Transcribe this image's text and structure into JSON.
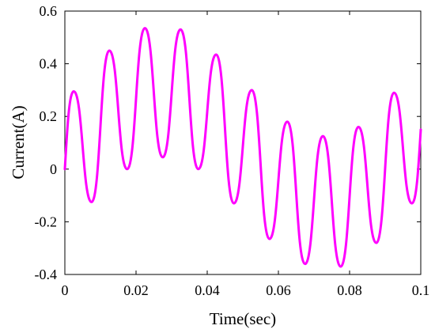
{
  "chart_data": {
    "type": "line",
    "xlabel": "Time(sec)",
    "ylabel": "Current(A)",
    "xlim": [
      0,
      0.1
    ],
    "ylim": [
      -0.4,
      0.6
    ],
    "x_ticks": [
      0,
      0.02,
      0.04,
      0.06,
      0.08,
      0.1
    ],
    "x_tick_labels": [
      "0",
      "0.02",
      "0.04",
      "0.06",
      "0.08",
      "0.1"
    ],
    "y_ticks": [
      -0.4,
      -0.2,
      0,
      0.2,
      0.4,
      0.6
    ],
    "y_tick_labels": [
      "-0.4",
      "-0.2",
      "0",
      "0.2",
      "0.4",
      "0.6"
    ],
    "grid": false,
    "series": [
      {
        "color": "#ff00ff",
        "x": [
          0,
          0.0025,
          0.0075,
          0.0125,
          0.0175,
          0.0225,
          0.0275,
          0.0325,
          0.0375,
          0.0425,
          0.0475,
          0.0525,
          0.0575,
          0.0625,
          0.0675,
          0.0725,
          0.0775,
          0.0825,
          0.0875,
          0.0925,
          0.0975,
          0.1
        ],
        "y": [
          0.0,
          0.295,
          -0.125,
          0.45,
          0.0,
          0.535,
          0.045,
          0.53,
          0.0,
          0.435,
          -0.13,
          0.3,
          -0.265,
          0.18,
          -0.36,
          0.125,
          -0.37,
          0.16,
          -0.28,
          0.29,
          -0.13,
          0.15
        ]
      }
    ]
  }
}
